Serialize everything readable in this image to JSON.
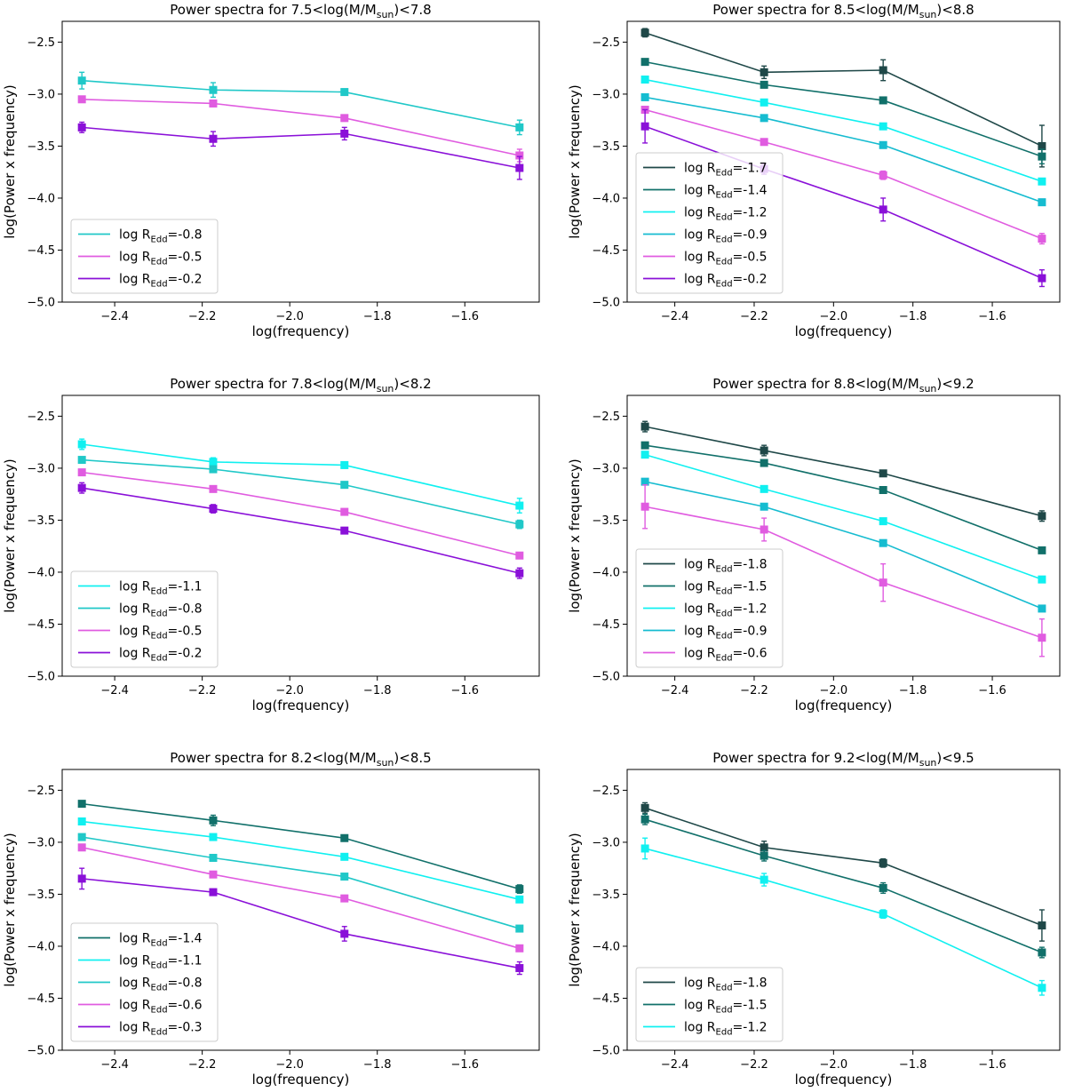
{
  "figure": {
    "xlabel": "log(frequency)",
    "ylabel": "log(Power x frequency)",
    "legend_prefix": "log R",
    "legend_sub": "Edd",
    "title_prefix": "Power spectra for ",
    "title_mid": "<log(M/M",
    "title_sub": "sun",
    "title_end": ")<"
  },
  "chart_data": [
    {
      "type": "line",
      "title": "Power spectra for 7.5<log(M/Msun)<7.8",
      "mass_low": "7.5",
      "mass_high": "7.8",
      "xlabel": "log(frequency)",
      "ylabel": "log(Power x frequency)",
      "xlim": [
        -2.52,
        -1.43
      ],
      "ylim": [
        -5.0,
        -2.3
      ],
      "xticks": [
        "-2.4",
        "-2.2",
        "-2.0",
        "-1.8",
        "-1.6"
      ],
      "xtick_values": [
        -2.4,
        -2.2,
        -2.0,
        -1.8,
        -1.6
      ],
      "yticks": [
        "-2.5",
        "-3.0",
        "-3.5",
        "-4.0",
        "-4.5",
        "-5.0"
      ],
      "ytick_values": [
        -2.5,
        -3.0,
        -3.5,
        -4.0,
        -4.5,
        -5.0
      ],
      "x": [
        -2.475,
        -2.175,
        -1.875,
        -1.475
      ],
      "legend_position": "lower-left",
      "series": [
        {
          "name": "log REdd=-0.8",
          "value": "-0.8",
          "color": "#20c8c8",
          "values": [
            -2.87,
            -2.96,
            -2.98,
            -3.32
          ],
          "errors": [
            0.08,
            0.07,
            0.03,
            0.07
          ]
        },
        {
          "name": "log REdd=-0.5",
          "value": "-0.5",
          "color": "#e05ce0",
          "values": [
            -3.05,
            -3.09,
            -3.23,
            -3.59
          ],
          "errors": [
            0.03,
            0.03,
            0.03,
            0.06
          ]
        },
        {
          "name": "log REdd=-0.2",
          "value": "-0.2",
          "color": "#8a10d8",
          "values": [
            -3.32,
            -3.43,
            -3.38,
            -3.71
          ],
          "errors": [
            0.05,
            0.07,
            0.06,
            0.11
          ]
        }
      ]
    },
    {
      "type": "line",
      "title": "Power spectra for 8.5<log(M/Msun)<8.8",
      "mass_low": "8.5",
      "mass_high": "8.8",
      "xlabel": "log(frequency)",
      "ylabel": "log(Power x frequency)",
      "xlim": [
        -2.52,
        -1.43
      ],
      "ylim": [
        -5.0,
        -2.3
      ],
      "xticks": [
        "-2.4",
        "-2.2",
        "-2.0",
        "-1.8",
        "-1.6"
      ],
      "xtick_values": [
        -2.4,
        -2.2,
        -2.0,
        -1.8,
        -1.6
      ],
      "yticks": [
        "-2.5",
        "-3.0",
        "-3.5",
        "-4.0",
        "-4.5",
        "-5.0"
      ],
      "ytick_values": [
        -2.5,
        -3.0,
        -3.5,
        -4.0,
        -4.5,
        -5.0
      ],
      "x": [
        -2.475,
        -2.175,
        -1.875,
        -1.475
      ],
      "legend_position": "lower-left",
      "series": [
        {
          "name": "log REdd=-1.7",
          "value": "-1.7",
          "color": "#1f4848",
          "values": [
            -2.41,
            -2.79,
            -2.77,
            -3.5
          ],
          "errors": [
            0.04,
            0.06,
            0.1,
            0.2
          ]
        },
        {
          "name": "log REdd=-1.4",
          "value": "-1.4",
          "color": "#11706a",
          "values": [
            -2.69,
            -2.91,
            -3.06,
            -3.6
          ],
          "errors": [
            0.02,
            0.03,
            0.02,
            0.07
          ]
        },
        {
          "name": "log REdd=-1.2",
          "value": "-1.2",
          "color": "#10f0f0",
          "values": [
            -2.86,
            -3.08,
            -3.31,
            -3.84
          ],
          "errors": [
            0.02,
            0.02,
            0.03,
            0.03
          ]
        },
        {
          "name": "log REdd=-0.9",
          "value": "-0.9",
          "color": "#16bcd0",
          "values": [
            -3.03,
            -3.23,
            -3.49,
            -4.04
          ],
          "errors": [
            0.02,
            0.02,
            0.03,
            0.03
          ]
        },
        {
          "name": "log REdd=-0.5",
          "value": "-0.5",
          "color": "#e05ce0",
          "values": [
            -3.15,
            -3.46,
            -3.78,
            -4.39
          ],
          "errors": [
            0.03,
            0.02,
            0.04,
            0.05
          ]
        },
        {
          "name": "log REdd=-0.2",
          "value": "-0.2",
          "color": "#8a10d8",
          "values": [
            -3.31,
            -3.72,
            -4.11,
            -4.77
          ],
          "errors": [
            0.16,
            0.05,
            0.11,
            0.08
          ]
        }
      ]
    },
    {
      "type": "line",
      "title": "Power spectra for 7.8<log(M/Msun)<8.2",
      "mass_low": "7.8",
      "mass_high": "8.2",
      "xlabel": "log(frequency)",
      "ylabel": "log(Power x frequency)",
      "xlim": [
        -2.52,
        -1.43
      ],
      "ylim": [
        -5.0,
        -2.3
      ],
      "xticks": [
        "-2.4",
        "-2.2",
        "-2.0",
        "-1.8",
        "-1.6"
      ],
      "xtick_values": [
        -2.4,
        -2.2,
        -2.0,
        -1.8,
        -1.6
      ],
      "yticks": [
        "-2.5",
        "-3.0",
        "-3.5",
        "-4.0",
        "-4.5",
        "-5.0"
      ],
      "ytick_values": [
        -2.5,
        -3.0,
        -3.5,
        -4.0,
        -4.5,
        -5.0
      ],
      "x": [
        -2.475,
        -2.175,
        -1.875,
        -1.475
      ],
      "legend_position": "lower-left",
      "series": [
        {
          "name": "log REdd=-1.1",
          "value": "-1.1",
          "color": "#10f0f0",
          "values": [
            -2.77,
            -2.94,
            -2.97,
            -3.36
          ],
          "errors": [
            0.05,
            0.04,
            0.03,
            0.07
          ]
        },
        {
          "name": "log REdd=-0.8",
          "value": "-0.8",
          "color": "#20c8c8",
          "values": [
            -2.92,
            -3.01,
            -3.16,
            -3.54
          ],
          "errors": [
            0.02,
            0.02,
            0.02,
            0.04
          ]
        },
        {
          "name": "log REdd=-0.5",
          "value": "-0.5",
          "color": "#e05ce0",
          "values": [
            -3.04,
            -3.2,
            -3.42,
            -3.84
          ],
          "errors": [
            0.02,
            0.02,
            0.02,
            0.02
          ]
        },
        {
          "name": "log REdd=-0.2",
          "value": "-0.2",
          "color": "#8a10d8",
          "values": [
            -3.19,
            -3.39,
            -3.6,
            -4.01
          ],
          "errors": [
            0.05,
            0.04,
            0.02,
            0.05
          ]
        }
      ]
    },
    {
      "type": "line",
      "title": "Power spectra for 8.8<log(M/Msun)<9.2",
      "mass_low": "8.8",
      "mass_high": "9.2",
      "xlabel": "log(frequency)",
      "ylabel": "log(Power x frequency)",
      "xlim": [
        -2.52,
        -1.43
      ],
      "ylim": [
        -5.0,
        -2.3
      ],
      "xticks": [
        "-2.4",
        "-2.2",
        "-2.0",
        "-1.8",
        "-1.6"
      ],
      "xtick_values": [
        -2.4,
        -2.2,
        -2.0,
        -1.8,
        -1.6
      ],
      "yticks": [
        "-2.5",
        "-3.0",
        "-3.5",
        "-4.0",
        "-4.5",
        "-5.0"
      ],
      "ytick_values": [
        -2.5,
        -3.0,
        -3.5,
        -4.0,
        -4.5,
        -5.0
      ],
      "x": [
        -2.475,
        -2.175,
        -1.875,
        -1.475
      ],
      "legend_position": "lower-left",
      "series": [
        {
          "name": "log REdd=-1.8",
          "value": "-1.8",
          "color": "#1f4848",
          "values": [
            -2.6,
            -2.83,
            -3.05,
            -3.46
          ],
          "errors": [
            0.05,
            0.05,
            0.02,
            0.05
          ]
        },
        {
          "name": "log REdd=-1.5",
          "value": "-1.5",
          "color": "#11706a",
          "values": [
            -2.78,
            -2.95,
            -3.21,
            -3.79
          ],
          "errors": [
            0.02,
            0.02,
            0.02,
            0.02
          ]
        },
        {
          "name": "log REdd=-1.2",
          "value": "-1.2",
          "color": "#10f0f0",
          "values": [
            -2.87,
            -3.2,
            -3.51,
            -4.07
          ],
          "errors": [
            0.02,
            0.02,
            0.02,
            0.02
          ]
        },
        {
          "name": "log REdd=-0.9",
          "value": "-0.9",
          "color": "#16bcd0",
          "values": [
            -3.13,
            -3.37,
            -3.72,
            -4.35
          ],
          "errors": [
            0.02,
            0.02,
            0.02,
            0.02
          ]
        },
        {
          "name": "log REdd=-0.6",
          "value": "-0.6",
          "color": "#e05ce0",
          "values": [
            -3.37,
            -3.59,
            -4.1,
            -4.63
          ],
          "errors": [
            0.21,
            0.11,
            0.18,
            0.18
          ]
        }
      ]
    },
    {
      "type": "line",
      "title": "Power spectra for 8.2<log(M/Msun)<8.5",
      "mass_low": "8.2",
      "mass_high": "8.5",
      "xlabel": "log(frequency)",
      "ylabel": "log(Power x frequency)",
      "xlim": [
        -2.52,
        -1.43
      ],
      "ylim": [
        -5.0,
        -2.3
      ],
      "xticks": [
        "-2.4",
        "-2.2",
        "-2.0",
        "-1.8",
        "-1.6"
      ],
      "xtick_values": [
        -2.4,
        -2.2,
        -2.0,
        -1.8,
        -1.6
      ],
      "yticks": [
        "-2.5",
        "-3.0",
        "-3.5",
        "-4.0",
        "-4.5",
        "-5.0"
      ],
      "ytick_values": [
        -2.5,
        -3.0,
        -3.5,
        -4.0,
        -4.5,
        -5.0
      ],
      "x": [
        -2.475,
        -2.175,
        -1.875,
        -1.475
      ],
      "legend_position": "lower-left",
      "series": [
        {
          "name": "log REdd=-1.4",
          "value": "-1.4",
          "color": "#11706a",
          "values": [
            -2.63,
            -2.79,
            -2.96,
            -3.45
          ],
          "errors": [
            0.02,
            0.05,
            0.03,
            0.04
          ]
        },
        {
          "name": "log REdd=-1.1",
          "value": "-1.1",
          "color": "#10f0f0",
          "values": [
            -2.8,
            -2.95,
            -3.14,
            -3.55
          ],
          "errors": [
            0.02,
            0.02,
            0.02,
            0.02
          ]
        },
        {
          "name": "log REdd=-0.8",
          "value": "-0.8",
          "color": "#20c8c8",
          "values": [
            -2.95,
            -3.15,
            -3.33,
            -3.83
          ],
          "errors": [
            0.02,
            0.02,
            0.02,
            0.02
          ]
        },
        {
          "name": "log REdd=-0.6",
          "value": "-0.6",
          "color": "#e05ce0",
          "values": [
            -3.05,
            -3.31,
            -3.54,
            -4.02
          ],
          "errors": [
            0.02,
            0.02,
            0.02,
            0.02
          ]
        },
        {
          "name": "log REdd=-0.3",
          "value": "-0.3",
          "color": "#8a10d8",
          "values": [
            -3.35,
            -3.48,
            -3.88,
            -4.21
          ],
          "errors": [
            0.1,
            0.03,
            0.07,
            0.06
          ]
        }
      ]
    },
    {
      "type": "line",
      "title": "Power spectra for 9.2<log(M/Msun)<9.5",
      "mass_low": "9.2",
      "mass_high": "9.5",
      "xlabel": "log(frequency)",
      "ylabel": "log(Power x frequency)",
      "xlim": [
        -2.52,
        -1.43
      ],
      "ylim": [
        -5.0,
        -2.3
      ],
      "xticks": [
        "-2.4",
        "-2.2",
        "-2.0",
        "-1.8",
        "-1.6"
      ],
      "xtick_values": [
        -2.4,
        -2.2,
        -2.0,
        -1.8,
        -1.6
      ],
      "yticks": [
        "-2.5",
        "-3.0",
        "-3.5",
        "-4.0",
        "-4.5",
        "-5.0"
      ],
      "ytick_values": [
        -2.5,
        -3.0,
        -3.5,
        -4.0,
        -4.5,
        -5.0
      ],
      "x": [
        -2.475,
        -2.175,
        -1.875,
        -1.475
      ],
      "legend_position": "lower-left",
      "series": [
        {
          "name": "log REdd=-1.8",
          "value": "-1.8",
          "color": "#1f4848",
          "values": [
            -2.67,
            -3.05,
            -3.2,
            -3.8
          ],
          "errors": [
            0.05,
            0.06,
            0.04,
            0.15
          ]
        },
        {
          "name": "log REdd=-1.5",
          "value": "-1.5",
          "color": "#11706a",
          "values": [
            -2.78,
            -3.13,
            -3.44,
            -4.06
          ],
          "errors": [
            0.05,
            0.05,
            0.05,
            0.05
          ]
        },
        {
          "name": "log REdd=-1.2",
          "value": "-1.2",
          "color": "#10f0f0",
          "values": [
            -3.06,
            -3.36,
            -3.69,
            -4.4
          ],
          "errors": [
            0.1,
            0.06,
            0.04,
            0.07
          ]
        }
      ]
    }
  ]
}
